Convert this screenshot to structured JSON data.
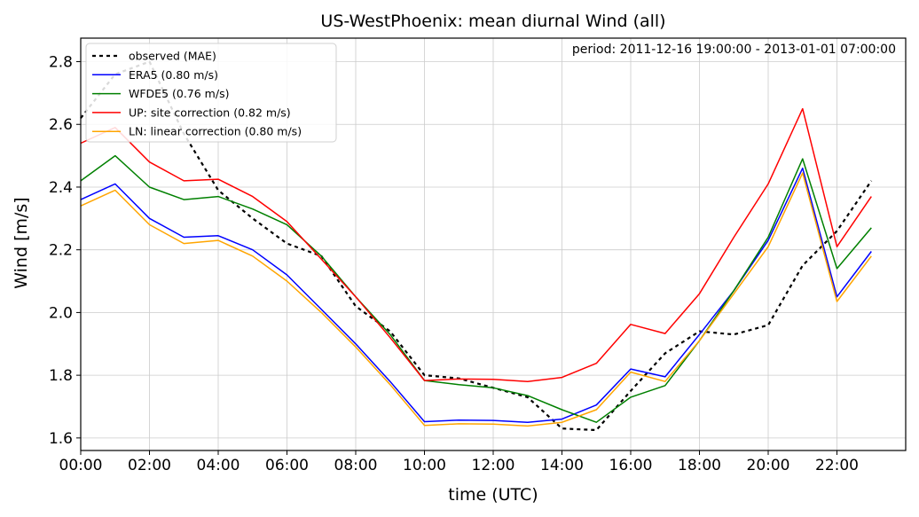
{
  "chart_data": {
    "type": "line",
    "title": "US-WestPhoenix: mean diurnal Wind (all)",
    "annotation": "period: 2011-12-16 19:00:00 - 2013-01-01 07:00:00",
    "xlabel": "time (UTC)",
    "ylabel": "Wind [m/s]",
    "xlim": [
      0,
      24
    ],
    "ylim": [
      1.56,
      2.875
    ],
    "grid": true,
    "legend_position": "top-left",
    "x": [
      0,
      1,
      2,
      3,
      4,
      5,
      6,
      7,
      8,
      9,
      10,
      11,
      12,
      13,
      14,
      15,
      16,
      17,
      18,
      19,
      20,
      21,
      22,
      23
    ],
    "x_ticks": [
      0,
      2,
      4,
      6,
      8,
      10,
      12,
      14,
      16,
      18,
      20,
      22
    ],
    "x_tick_labels": [
      "00:00",
      "02:00",
      "04:00",
      "06:00",
      "08:00",
      "10:00",
      "12:00",
      "14:00",
      "16:00",
      "18:00",
      "20:00",
      "22:00"
    ],
    "y_ticks": [
      1.6,
      1.8,
      2.0,
      2.2,
      2.4,
      2.6,
      2.8
    ],
    "y_tick_labels": [
      "1.6",
      "1.8",
      "2.0",
      "2.2",
      "2.4",
      "2.6",
      "2.8"
    ],
    "series": [
      {
        "name": "observed (MAE)",
        "color": "#000000",
        "dashed": true,
        "values": [
          2.62,
          2.76,
          2.8,
          2.57,
          2.39,
          2.3,
          2.22,
          2.18,
          2.02,
          1.94,
          1.8,
          1.79,
          1.76,
          1.73,
          1.63,
          1.625,
          1.75,
          1.87,
          1.94,
          1.93,
          1.96,
          2.15,
          2.26,
          2.42
        ]
      },
      {
        "name": "ERA5 (0.80 m/s)",
        "color": "#0000ff",
        "dashed": false,
        "values": [
          2.36,
          2.41,
          2.3,
          2.24,
          2.245,
          2.2,
          2.12,
          2.01,
          1.9,
          1.78,
          1.652,
          1.657,
          1.656,
          1.65,
          1.66,
          1.705,
          1.82,
          1.795,
          1.93,
          2.07,
          2.23,
          2.46,
          2.05,
          2.195
        ]
      },
      {
        "name": "WFDE5 (0.76 m/s)",
        "color": "#008000",
        "dashed": false,
        "values": [
          2.42,
          2.5,
          2.4,
          2.36,
          2.37,
          2.33,
          2.28,
          2.18,
          2.05,
          1.93,
          1.783,
          1.77,
          1.76,
          1.735,
          1.69,
          1.65,
          1.73,
          1.767,
          1.91,
          2.07,
          2.24,
          2.49,
          2.14,
          2.27
        ]
      },
      {
        "name": "UP: site correction (0.82 m/s)",
        "color": "#ff0000",
        "dashed": false,
        "values": [
          2.54,
          2.59,
          2.48,
          2.42,
          2.425,
          2.37,
          2.29,
          2.17,
          2.05,
          1.92,
          1.783,
          1.788,
          1.787,
          1.78,
          1.793,
          1.838,
          1.962,
          1.933,
          2.06,
          2.24,
          2.41,
          2.65,
          2.21,
          2.37
        ]
      },
      {
        "name": "LN: linear correction (0.80 m/s)",
        "color": "#ffa500",
        "dashed": false,
        "values": [
          2.34,
          2.39,
          2.28,
          2.22,
          2.23,
          2.18,
          2.1,
          2.0,
          1.89,
          1.77,
          1.64,
          1.645,
          1.644,
          1.638,
          1.65,
          1.69,
          1.81,
          1.78,
          1.91,
          2.06,
          2.21,
          2.445,
          2.035,
          2.18
        ]
      }
    ]
  }
}
